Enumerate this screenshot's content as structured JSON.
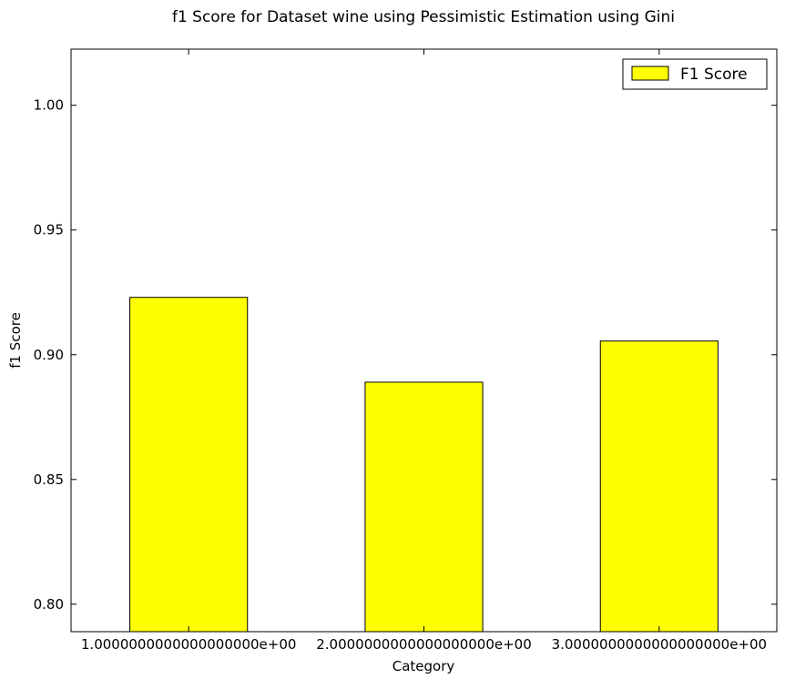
{
  "chart_data": {
    "type": "bar",
    "title": "f1 Score for Dataset wine using Pessimistic Estimation using Gini",
    "xlabel": "Category",
    "ylabel": "f1 Score",
    "categories": [
      "1.0000000000000000000e+00",
      "2.0000000000000000000e+00",
      "3.0000000000000000000e+00"
    ],
    "series": [
      {
        "name": "F1 Score",
        "values": [
          0.923,
          0.889,
          0.9055
        ]
      }
    ],
    "ylim": [
      0.789,
      1.0225
    ],
    "yticks": [
      0.8,
      0.85,
      0.9,
      0.95,
      1.0
    ],
    "ytick_labels": [
      "0.80",
      "0.85",
      "0.90",
      "0.95",
      "1.00"
    ],
    "bar_color": "#ffff00",
    "edge_color": "#000000",
    "legend": {
      "position": "top-right",
      "entries": [
        "F1 Score"
      ]
    },
    "grid": false
  }
}
